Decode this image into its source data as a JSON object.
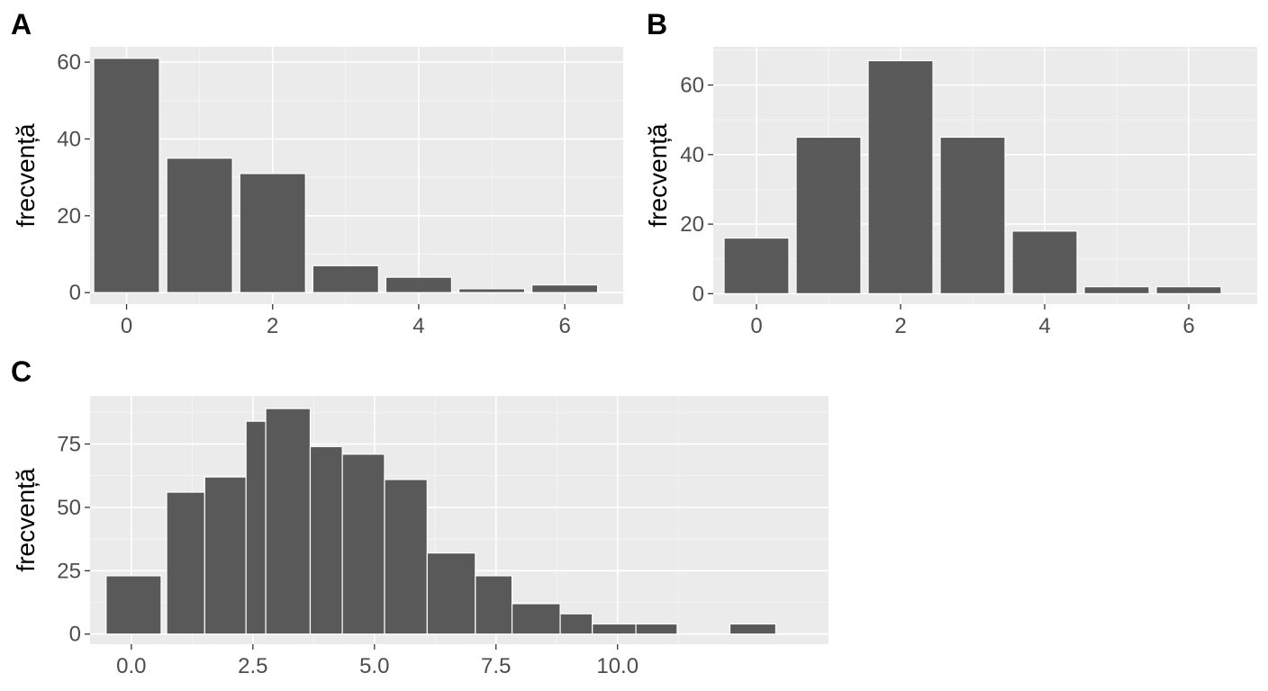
{
  "chart_data": [
    {
      "panel": "A",
      "type": "bar",
      "title": "",
      "xlabel": "",
      "ylabel": "frecvență",
      "x": [
        0,
        1,
        2,
        3,
        4,
        5,
        6
      ],
      "values": [
        61,
        35,
        31,
        7,
        4,
        1,
        2
      ],
      "xlim": [
        -0.5,
        6.8
      ],
      "ylim": [
        -3,
        64
      ],
      "x_ticks": [
        "0",
        "2",
        "4",
        "6"
      ],
      "y_ticks": [
        "0",
        "20",
        "40",
        "60"
      ],
      "grid": true
    },
    {
      "panel": "B",
      "type": "bar",
      "title": "",
      "xlabel": "",
      "ylabel": "frecvență",
      "x": [
        0,
        1,
        2,
        3,
        4,
        5,
        6
      ],
      "values": [
        16,
        45,
        67,
        45,
        18,
        2,
        2
      ],
      "xlim": [
        -0.6,
        6.95
      ],
      "ylim": [
        -3,
        71
      ],
      "x_ticks": [
        "0",
        "2",
        "4",
        "6"
      ],
      "y_ticks": [
        "0",
        "20",
        "40",
        "60"
      ],
      "grid": true
    },
    {
      "panel": "C",
      "type": "bar",
      "title": "",
      "xlabel": "",
      "ylabel": "frecvență",
      "bins": [
        {
          "x0": -0.55,
          "x1": 0.65,
          "value": 23
        },
        {
          "x0": 0.77,
          "x1": 1.6,
          "value": 56
        },
        {
          "x0": 1.6,
          "x1": 2.5,
          "value": 62
        },
        {
          "x0": 2.5,
          "x1": 2.93,
          "value": 84
        },
        {
          "x0": 2.93,
          "x1": 3.9,
          "value": 89
        },
        {
          "x0": 3.9,
          "x1": 4.6,
          "value": 74
        },
        {
          "x0": 4.6,
          "x1": 5.52,
          "value": 71
        },
        {
          "x0": 5.52,
          "x1": 6.45,
          "value": 61
        },
        {
          "x0": 6.45,
          "x1": 7.5,
          "value": 32
        },
        {
          "x0": 7.5,
          "x1": 8.3,
          "value": 23
        },
        {
          "x0": 8.3,
          "x1": 9.35,
          "value": 12
        },
        {
          "x0": 9.35,
          "x1": 10.05,
          "value": 8
        },
        {
          "x0": 10.05,
          "x1": 11.0,
          "value": 4
        },
        {
          "x0": 11.0,
          "x1": 11.9,
          "value": 4
        },
        {
          "x0": 13.05,
          "x1": 14.05,
          "value": 4
        }
      ],
      "x_positions": {
        "0.0": 0.0,
        "2.5": 0.0,
        "5.0": 0.0,
        "7.5": 0.0,
        "10.0": 0.0
      },
      "xlim": [
        -0.9,
        15.2
      ],
      "ylim": [
        -4,
        94
      ],
      "x_ticks": [
        "0.0",
        "2.5",
        "5.0",
        "7.5",
        "10.0"
      ],
      "y_ticks": [
        "0",
        "25",
        "50",
        "75"
      ],
      "grid": true
    }
  ]
}
